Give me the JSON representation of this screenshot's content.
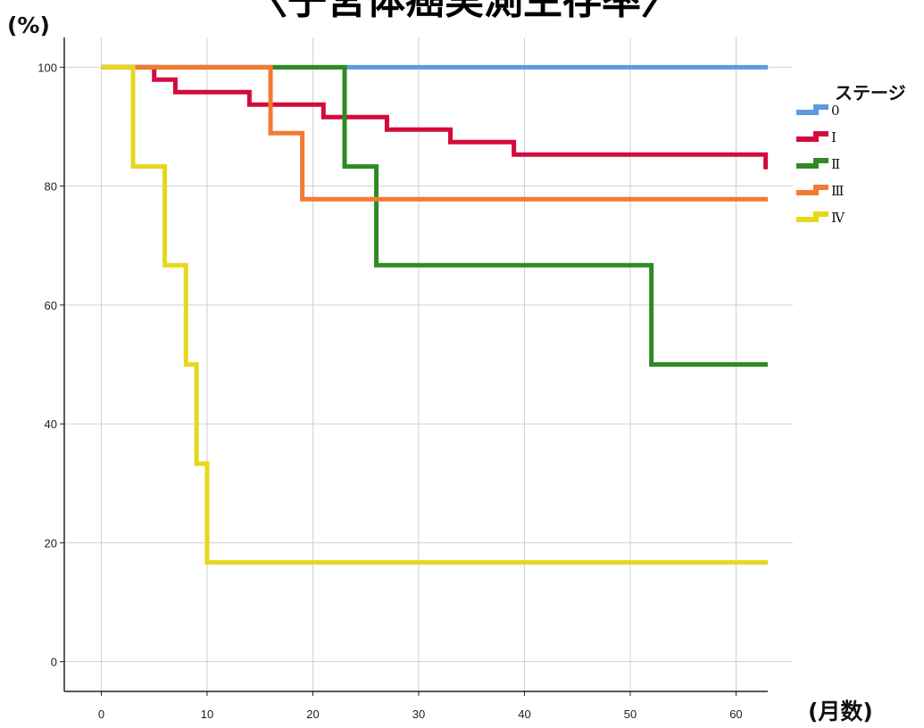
{
  "chart_data": {
    "type": "line",
    "step": true,
    "title": "〈子宮体癌実測生存率〉",
    "ylabel": "(%)",
    "xlabel": "(月数)",
    "xlim": [
      -3.5,
      63
    ],
    "ylim": [
      -5,
      105
    ],
    "xticks": [
      0,
      10,
      20,
      30,
      40,
      50,
      60
    ],
    "yticks": [
      0,
      20,
      40,
      60,
      80,
      100
    ],
    "grid": true,
    "legend": {
      "title": "ステージ",
      "position": "right"
    },
    "series": [
      {
        "name": "0",
        "color": "#5b9bdc",
        "points": [
          [
            0,
            100
          ],
          [
            63,
            100
          ]
        ]
      },
      {
        "name": "Ⅰ",
        "color": "#d30a3c",
        "points": [
          [
            0,
            100
          ],
          [
            5,
            97.9
          ],
          [
            7,
            95.8
          ],
          [
            14,
            93.7
          ],
          [
            21,
            91.6
          ],
          [
            27,
            89.5
          ],
          [
            33,
            87.4
          ],
          [
            39,
            85.3
          ],
          [
            62.8,
            83.2
          ],
          [
            63,
            83.2
          ]
        ]
      },
      {
        "name": "Ⅱ",
        "color": "#2e8b22",
        "points": [
          [
            0,
            100
          ],
          [
            23,
            83.3
          ],
          [
            26,
            66.7
          ],
          [
            52,
            50
          ],
          [
            63,
            50
          ]
        ]
      },
      {
        "name": "Ⅲ",
        "color": "#f47a30",
        "points": [
          [
            0,
            100
          ],
          [
            16,
            88.9
          ],
          [
            19,
            77.8
          ],
          [
            63,
            77.8
          ]
        ]
      },
      {
        "name": "Ⅳ",
        "color": "#e6d81a",
        "points": [
          [
            0,
            100
          ],
          [
            3,
            83.3
          ],
          [
            6,
            66.7
          ],
          [
            8,
            50
          ],
          [
            9,
            33.3
          ],
          [
            10,
            16.7
          ],
          [
            63,
            16.7
          ]
        ]
      }
    ]
  }
}
